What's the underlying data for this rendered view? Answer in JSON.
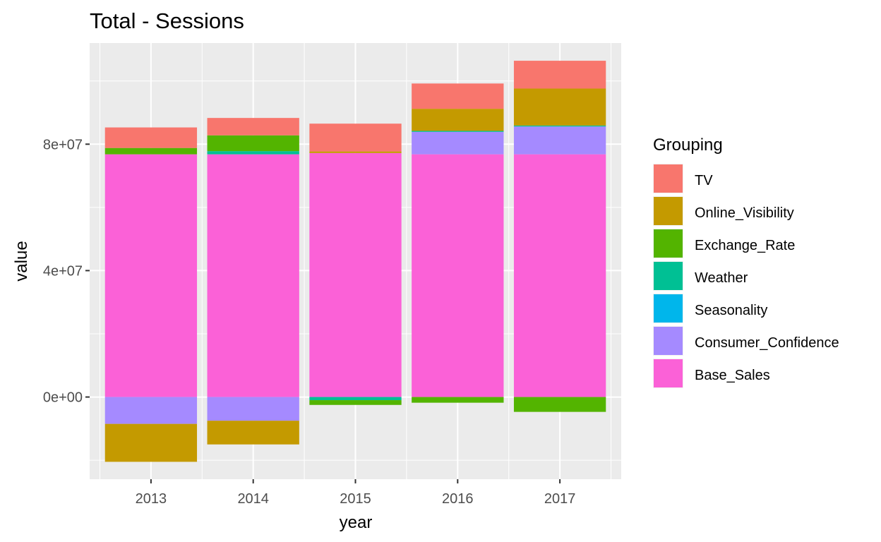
{
  "chart_data": {
    "type": "bar",
    "stacked": true,
    "title": "Total - Sessions",
    "xlabel": "year",
    "ylabel": "value",
    "categories": [
      "2013",
      "2014",
      "2015",
      "2016",
      "2017"
    ],
    "ylim": [
      -26000000,
      112000000
    ],
    "yticks": [
      0,
      40000000,
      80000000
    ],
    "ytick_labels": [
      "0e+00",
      "4e+07",
      "8e+07"
    ],
    "grid": true,
    "panel_background": "#ebebeb",
    "legend": {
      "title": "Grouping",
      "position": "right",
      "entries": [
        "TV",
        "Online_Visibility",
        "Exchange_Rate",
        "Weather",
        "Seasonality",
        "Consumer_Confidence",
        "Base_Sales"
      ]
    },
    "series": [
      {
        "name": "TV",
        "color": "#F8766D",
        "values": [
          6500000,
          5500000,
          8800000,
          8000000,
          8800000
        ]
      },
      {
        "name": "Online_Visibility",
        "color": "#C49A00",
        "values": [
          -12000000,
          -7500000,
          500000,
          7000000,
          11700000
        ]
      },
      {
        "name": "Exchange_Rate",
        "color": "#53B400",
        "values": [
          2000000,
          5000000,
          -1500000,
          -1800000,
          -4700000
        ]
      },
      {
        "name": "Weather",
        "color": "#00C094",
        "values": [
          0,
          1000000,
          -1000000,
          300000,
          300000
        ]
      },
      {
        "name": "Seasonality",
        "color": "#00B6EB",
        "values": [
          0,
          0,
          0,
          0,
          0
        ]
      },
      {
        "name": "Consumer_Confidence",
        "color": "#A58AFF",
        "values": [
          -8500000,
          -7500000,
          0,
          7100000,
          8800000
        ]
      },
      {
        "name": "Base_Sales",
        "color": "#FB61D7",
        "values": [
          76800000,
          76800000,
          77200000,
          76800000,
          76800000
        ]
      }
    ]
  }
}
